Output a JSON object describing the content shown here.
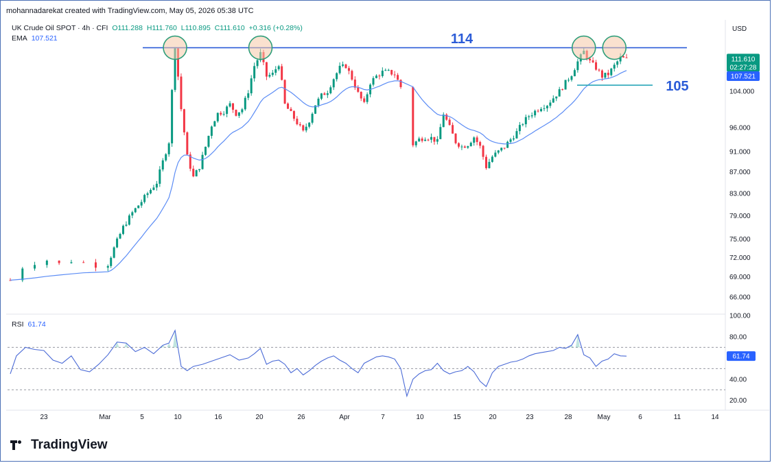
{
  "header": {
    "publish_info": "mohannadarekat created with TradingView.com, May 05, 2026 05:38 UTC",
    "currency": "USD"
  },
  "legend": {
    "symbol": "UK Crude Oil SPOT · 4h · CFI",
    "open": "O111.288",
    "high": "H111.760",
    "low": "L110.895",
    "close": "C111.610",
    "change": "+0.316 (+0.28%)",
    "ema_label": "EMA",
    "ema_value": "107.521",
    "rsi_label": "RSI",
    "rsi_value": "61.74"
  },
  "brand": {
    "name": "TradingView"
  },
  "colors": {
    "up": "#089981",
    "down": "#f23645",
    "ema": "#5b8cf5",
    "rsi": "#4a6ad6",
    "annotation": "#2a5bd7",
    "circle": "#2e9e7a",
    "circle_fill": "#f6c9a7"
  },
  "chart_data": [
    {
      "type": "candlestick",
      "title": "UK Crude Oil SPOT · 4h · CFI",
      "x_ticks": [
        "23",
        "Mar",
        "5",
        "10",
        "16",
        "20",
        "26",
        "Apr",
        "7",
        "10",
        "15",
        "20",
        "23",
        "28",
        "May",
        "6",
        "11",
        "14"
      ],
      "y_ticks": [
        "104.000",
        "96.000",
        "91.000",
        "87.000",
        "83.000",
        "79.000",
        "75.000",
        "72.000",
        "69.000",
        "66.000"
      ],
      "y_scale": "log",
      "ylim": [
        64.5,
        121
      ],
      "last_price": "111.610",
      "countdown": "02:27:28",
      "ema_last": "107.521",
      "path": [
        [
          0,
          68.5
        ],
        [
          4,
          70.5
        ],
        [
          8,
          71.2
        ],
        [
          12,
          71.6
        ],
        [
          16,
          71.0
        ],
        [
          20,
          71.5
        ],
        [
          24,
          71.2
        ],
        [
          28,
          70.8
        ],
        [
          32,
          71.0
        ],
        [
          34,
          73.5
        ],
        [
          37,
          77.0
        ],
        [
          40,
          79.5
        ],
        [
          43,
          81.5
        ],
        [
          45,
          83.0
        ],
        [
          48,
          85.0
        ],
        [
          50,
          89.0
        ],
        [
          52,
          93.0
        ],
        [
          54,
          115.0
        ],
        [
          56,
          100.0
        ],
        [
          58,
          90.0
        ],
        [
          60,
          86.0
        ],
        [
          62,
          88.0
        ],
        [
          64,
          92.0
        ],
        [
          66,
          96.5
        ],
        [
          68,
          99.0
        ],
        [
          70,
          99.5
        ],
        [
          72,
          101.0
        ],
        [
          74,
          99.0
        ],
        [
          76,
          100.0
        ],
        [
          78,
          104.0
        ],
        [
          80,
          110.0
        ],
        [
          82,
          113.0
        ],
        [
          84,
          107.5
        ],
        [
          86,
          108.0
        ],
        [
          88,
          110.5
        ],
        [
          89,
          106.0
        ],
        [
          90,
          101.0
        ],
        [
          92,
          99.0
        ],
        [
          94,
          97.0
        ],
        [
          96,
          95.0
        ],
        [
          98,
          97.5
        ],
        [
          100,
          101.0
        ],
        [
          102,
          103.0
        ],
        [
          104,
          104.0
        ],
        [
          106,
          107.0
        ],
        [
          108,
          109.5
        ],
        [
          110,
          110.0
        ],
        [
          112,
          107.0
        ],
        [
          114,
          103.5
        ],
        [
          116,
          101.0
        ],
        [
          118,
          106.0
        ],
        [
          120,
          107.5
        ],
        [
          122,
          108.5
        ],
        [
          124,
          108.5
        ],
        [
          126,
          108.0
        ],
        [
          128,
          105.0
        ],
        [
          132,
          92.5
        ],
        [
          134,
          93.5
        ],
        [
          136,
          94.0
        ],
        [
          138,
          93.8
        ],
        [
          140,
          93.0
        ],
        [
          142,
          99.0
        ],
        [
          144,
          96.0
        ],
        [
          146,
          93.0
        ],
        [
          148,
          92.0
        ],
        [
          150,
          92.5
        ],
        [
          152,
          94.0
        ],
        [
          154,
          92.0
        ],
        [
          156,
          88.0
        ],
        [
          158,
          90.0
        ],
        [
          160,
          91.0
        ],
        [
          162,
          92.0
        ],
        [
          164,
          93.5
        ],
        [
          166,
          95.0
        ],
        [
          168,
          97.0
        ],
        [
          170,
          98.5
        ],
        [
          172,
          99.5
        ],
        [
          174,
          100.5
        ],
        [
          176,
          101.0
        ],
        [
          178,
          102.5
        ],
        [
          180,
          104.0
        ],
        [
          182,
          106.0
        ],
        [
          184,
          108.0
        ],
        [
          186,
          111.0
        ],
        [
          188,
          113.5
        ],
        [
          190,
          111.0
        ],
        [
          192,
          109.5
        ],
        [
          194,
          107.5
        ],
        [
          196,
          108.0
        ],
        [
          198,
          110.0
        ],
        [
          200,
          112.0
        ],
        [
          202,
          111.6
        ]
      ],
      "rsi": {
        "title": "RSI",
        "value": "61.74",
        "y_ticks": [
          "100.00",
          "80.00",
          "60.00",
          "40.00",
          "20.00"
        ],
        "ylim": [
          14,
          100
        ],
        "bands": [
          70,
          50,
          30
        ],
        "series": [
          [
            0,
            45
          ],
          [
            2,
            62
          ],
          [
            5,
            70
          ],
          [
            8,
            68
          ],
          [
            11,
            67
          ],
          [
            14,
            58
          ],
          [
            17,
            55
          ],
          [
            20,
            62
          ],
          [
            23,
            49
          ],
          [
            26,
            47
          ],
          [
            29,
            54
          ],
          [
            32,
            63
          ],
          [
            35,
            75
          ],
          [
            38,
            74
          ],
          [
            41,
            66
          ],
          [
            44,
            70
          ],
          [
            47,
            64
          ],
          [
            50,
            72
          ],
          [
            52,
            74
          ],
          [
            54,
            86
          ],
          [
            56,
            52
          ],
          [
            58,
            48
          ],
          [
            60,
            52
          ],
          [
            63,
            54
          ],
          [
            66,
            57
          ],
          [
            69,
            60
          ],
          [
            72,
            63
          ],
          [
            75,
            58
          ],
          [
            78,
            60
          ],
          [
            80,
            64
          ],
          [
            82,
            69
          ],
          [
            84,
            54
          ],
          [
            86,
            57
          ],
          [
            88,
            58
          ],
          [
            90,
            54
          ],
          [
            92,
            46
          ],
          [
            94,
            50
          ],
          [
            96,
            44
          ],
          [
            98,
            48
          ],
          [
            100,
            53
          ],
          [
            102,
            57
          ],
          [
            104,
            60
          ],
          [
            106,
            62
          ],
          [
            108,
            58
          ],
          [
            110,
            55
          ],
          [
            112,
            50
          ],
          [
            114,
            46
          ],
          [
            116,
            55
          ],
          [
            118,
            58
          ],
          [
            120,
            61
          ],
          [
            122,
            62
          ],
          [
            124,
            61
          ],
          [
            126,
            59
          ],
          [
            128,
            50
          ],
          [
            130,
            24
          ],
          [
            132,
            40
          ],
          [
            134,
            45
          ],
          [
            136,
            48
          ],
          [
            138,
            49
          ],
          [
            140,
            55
          ],
          [
            142,
            48
          ],
          [
            144,
            45
          ],
          [
            146,
            47
          ],
          [
            148,
            48
          ],
          [
            150,
            52
          ],
          [
            152,
            47
          ],
          [
            154,
            38
          ],
          [
            156,
            33
          ],
          [
            158,
            46
          ],
          [
            160,
            52
          ],
          [
            162,
            54
          ],
          [
            164,
            56
          ],
          [
            166,
            57
          ],
          [
            168,
            59
          ],
          [
            170,
            62
          ],
          [
            172,
            64
          ],
          [
            174,
            65
          ],
          [
            176,
            66
          ],
          [
            178,
            67
          ],
          [
            180,
            70
          ],
          [
            182,
            69
          ],
          [
            184,
            72
          ],
          [
            186,
            82
          ],
          [
            188,
            63
          ],
          [
            190,
            60
          ],
          [
            192,
            52
          ],
          [
            194,
            57
          ],
          [
            196,
            59
          ],
          [
            198,
            64
          ],
          [
            200,
            62
          ],
          [
            202,
            61.74
          ]
        ]
      },
      "annotations": {
        "resistance_label": "114",
        "resistance_value": 114.5,
        "support_label": "105",
        "support_value": 105.4,
        "circles": [
          {
            "i": 54,
            "price": 114.5
          },
          {
            "i": 82,
            "price": 114.5
          },
          {
            "i": 188,
            "price": 114.5
          },
          {
            "i": 198,
            "price": 114.5
          }
        ]
      }
    }
  ]
}
